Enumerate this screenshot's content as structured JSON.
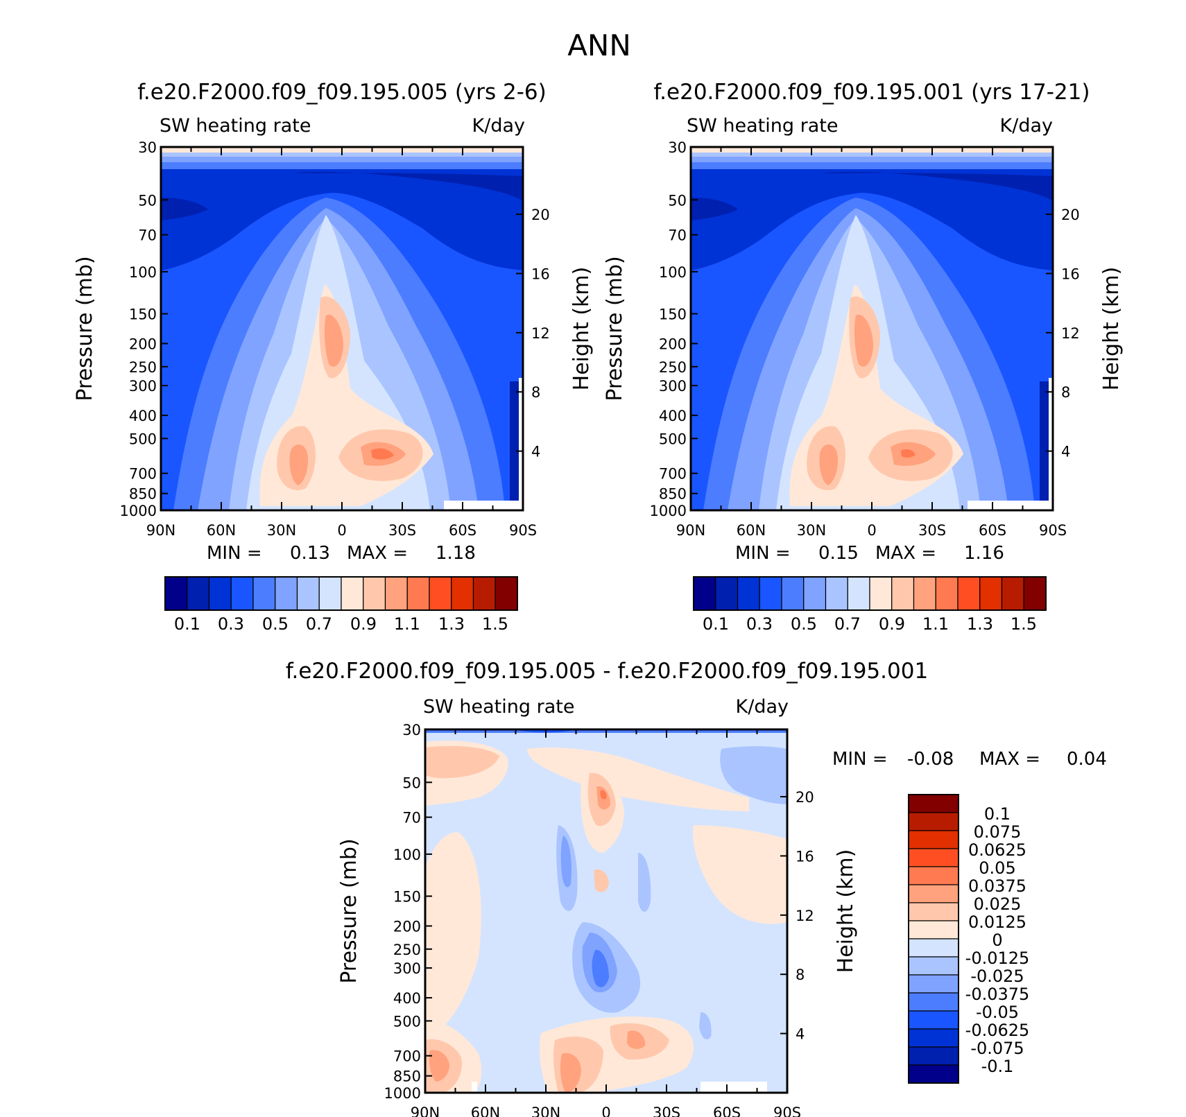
{
  "page_title": "ANN",
  "colors": {
    "abs_scale": [
      "#00008b",
      "#0020b0",
      "#0033d6",
      "#1a56ff",
      "#4c7dff",
      "#7fa3ff",
      "#aac4ff",
      "#d4e4ff",
      "#ffe8d8",
      "#ffc8ad",
      "#ffa27d",
      "#ff7a50",
      "#ff4f22",
      "#e23000",
      "#b81c00",
      "#820000"
    ],
    "diff_scale": [
      "#00008b",
      "#0020b0",
      "#0033d6",
      "#1a56ff",
      "#4c7dff",
      "#7fa3ff",
      "#aac4ff",
      "#d4e4ff",
      "#ffe8d8",
      "#ffc8ad",
      "#ffa27d",
      "#ff7a50",
      "#ff4f22",
      "#e23000",
      "#b81c00",
      "#820000"
    ]
  },
  "chart_data": [
    {
      "type": "heatmap",
      "title": "f.e20.F2000.f09_f09.195.005 (yrs 2-6)",
      "left_label": "SW heating rate",
      "right_label": "K/day",
      "xlabel": "",
      "ylabel": "Pressure (mb)",
      "y2label": "Height (km)",
      "x_ticks": [
        "90N",
        "60N",
        "30N",
        "0",
        "30S",
        "60S",
        "90S"
      ],
      "y_ticks": [
        "30",
        "50",
        "70",
        "100",
        "150",
        "200",
        "250",
        "300",
        "400",
        "500",
        "700",
        "850",
        "1000"
      ],
      "y2_ticks": [
        "20",
        "16",
        "12",
        "8",
        "4"
      ],
      "min_label": "MIN =",
      "min_value": "0.13",
      "max_label": "MAX =",
      "max_value": "1.18",
      "colorbar_labels": [
        "0.1",
        "0.3",
        "0.5",
        "0.7",
        "0.9",
        "1.1",
        "1.3",
        "1.5"
      ]
    },
    {
      "type": "heatmap",
      "title": "f.e20.F2000.f09_f09.195.001 (yrs 17-21)",
      "left_label": "SW heating rate",
      "right_label": "K/day",
      "xlabel": "",
      "ylabel": "Pressure (mb)",
      "y2label": "Height (km)",
      "x_ticks": [
        "90N",
        "60N",
        "30N",
        "0",
        "30S",
        "60S",
        "90S"
      ],
      "y_ticks": [
        "30",
        "50",
        "70",
        "100",
        "150",
        "200",
        "250",
        "300",
        "400",
        "500",
        "700",
        "850",
        "1000"
      ],
      "y2_ticks": [
        "20",
        "16",
        "12",
        "8",
        "4"
      ],
      "min_label": "MIN =",
      "min_value": "0.15",
      "max_label": "MAX =",
      "max_value": "1.16",
      "colorbar_labels": [
        "0.1",
        "0.3",
        "0.5",
        "0.7",
        "0.9",
        "1.1",
        "1.3",
        "1.5"
      ]
    },
    {
      "type": "heatmap",
      "title": "f.e20.F2000.f09_f09.195.005 - f.e20.F2000.f09_f09.195.001",
      "left_label": "SW heating rate",
      "right_label": "K/day",
      "xlabel": "",
      "ylabel": "Pressure (mb)",
      "y2label": "Height (km)",
      "x_ticks": [
        "90N",
        "60N",
        "30N",
        "0",
        "30S",
        "60S",
        "90S"
      ],
      "y_ticks": [
        "30",
        "50",
        "70",
        "100",
        "150",
        "200",
        "250",
        "300",
        "400",
        "500",
        "700",
        "850",
        "1000"
      ],
      "y2_ticks": [
        "20",
        "16",
        "12",
        "8",
        "4"
      ],
      "min_label": "MIN =",
      "min_value": "-0.08",
      "max_label": "MAX =",
      "max_value": "0.04",
      "colorbar_labels": [
        "0.1",
        "0.075",
        "0.0625",
        "0.05",
        "0.0375",
        "0.025",
        "0.0125",
        "0",
        "-0.0125",
        "-0.025",
        "-0.0375",
        "-0.05",
        "-0.0625",
        "-0.075",
        "-0.1"
      ]
    }
  ]
}
